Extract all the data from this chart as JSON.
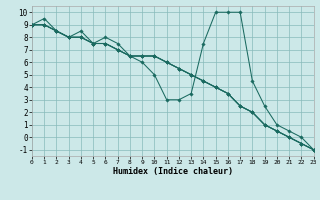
{
  "xlabel": "Humidex (Indice chaleur)",
  "bg_color": "#cce8e8",
  "grid_color": "#88bbbb",
  "line_color": "#1a6a60",
  "lines": [
    [
      9.0,
      9.5,
      8.5,
      8.0,
      8.5,
      7.5,
      8.0,
      7.5,
      6.5,
      6.0,
      5.0,
      3.0,
      3.0,
      3.5,
      7.5,
      10.0,
      10.0,
      10.0,
      4.5,
      2.5,
      1.0,
      0.5,
      0.0,
      -1.0
    ],
    [
      9.0,
      9.0,
      8.5,
      8.0,
      8.0,
      7.5,
      7.5,
      7.0,
      6.5,
      6.5,
      6.5,
      6.0,
      5.5,
      5.0,
      4.5,
      4.0,
      3.5,
      2.5,
      2.0,
      1.0,
      0.5,
      0.0,
      -0.5,
      -1.0
    ],
    [
      9.0,
      9.0,
      8.5,
      8.0,
      8.0,
      7.5,
      7.5,
      7.0,
      6.5,
      6.5,
      6.5,
      6.0,
      5.5,
      5.0,
      4.5,
      4.0,
      3.5,
      2.5,
      2.0,
      1.0,
      0.5,
      0.0,
      -0.5,
      -1.0
    ],
    [
      9.0,
      9.0,
      8.5,
      8.0,
      8.0,
      7.5,
      7.5,
      7.0,
      6.5,
      6.5,
      6.5,
      6.0,
      5.5,
      5.0,
      4.5,
      4.0,
      3.5,
      2.5,
      2.0,
      1.0,
      0.5,
      0.0,
      -0.5,
      -1.0
    ]
  ],
  "xlim": [
    0,
    23
  ],
  "ylim": [
    -1.5,
    10.5
  ],
  "yticks": [
    -1,
    0,
    1,
    2,
    3,
    4,
    5,
    6,
    7,
    8,
    9,
    10
  ],
  "xticks": [
    0,
    1,
    2,
    3,
    4,
    5,
    6,
    7,
    8,
    9,
    10,
    11,
    12,
    13,
    14,
    15,
    16,
    17,
    18,
    19,
    20,
    21,
    22,
    23
  ]
}
